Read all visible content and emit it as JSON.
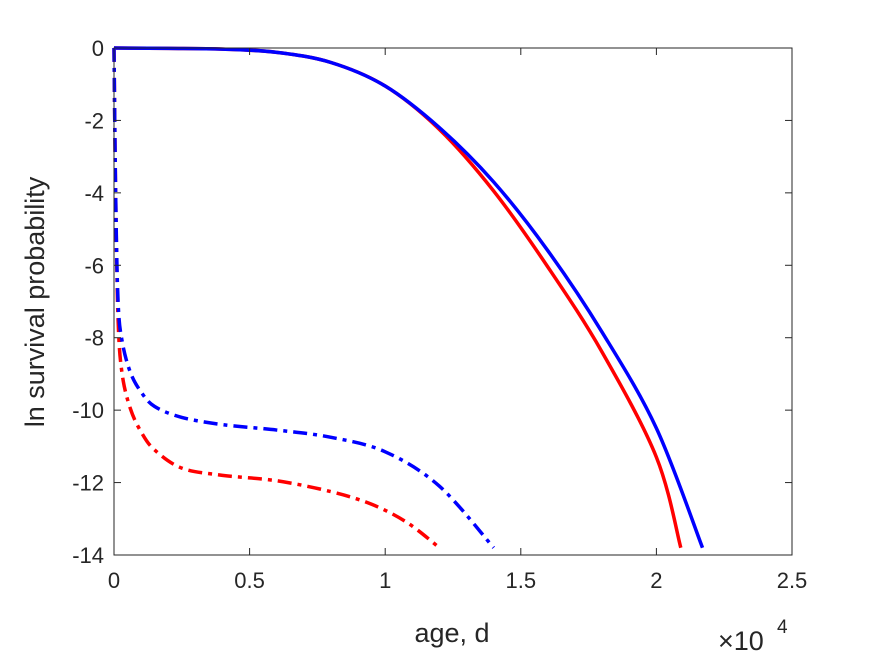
{
  "chart_data": {
    "type": "line",
    "title": "",
    "xlabel": "age, d",
    "ylabel": "ln survival probability",
    "x_exponent_label": {
      "base": "×10",
      "exp": "4"
    },
    "xlim": [
      0,
      25000
    ],
    "ylim": [
      -14,
      0
    ],
    "x_ticks": [
      {
        "value": 0,
        "label": "0"
      },
      {
        "value": 5000,
        "label": "0.5"
      },
      {
        "value": 10000,
        "label": "1"
      },
      {
        "value": 15000,
        "label": "1.5"
      },
      {
        "value": 20000,
        "label": "2"
      },
      {
        "value": 25000,
        "label": "2.5"
      }
    ],
    "y_ticks": [
      {
        "value": 0,
        "label": "0"
      },
      {
        "value": -2,
        "label": "-2"
      },
      {
        "value": -4,
        "label": "-4"
      },
      {
        "value": -6,
        "label": "-6"
      },
      {
        "value": -8,
        "label": "-8"
      },
      {
        "value": -10,
        "label": "-10"
      },
      {
        "value": -12,
        "label": "-12"
      },
      {
        "value": -14,
        "label": "-14"
      }
    ],
    "grid": false,
    "series": [
      {
        "color": "#ff0000",
        "style": "solid",
        "points": [
          [
            0,
            0
          ],
          [
            2000,
            -0.01
          ],
          [
            4000,
            -0.03
          ],
          [
            6000,
            -0.12
          ],
          [
            8000,
            -0.4
          ],
          [
            10000,
            -1.05
          ],
          [
            12000,
            -2.25
          ],
          [
            14000,
            -3.95
          ],
          [
            16000,
            -6.05
          ],
          [
            18000,
            -8.4
          ],
          [
            20000,
            -11.3
          ],
          [
            20900,
            -13.8
          ]
        ]
      },
      {
        "color": "#0000ff",
        "style": "solid",
        "points": [
          [
            0,
            0
          ],
          [
            2000,
            -0.01
          ],
          [
            4000,
            -0.03
          ],
          [
            6000,
            -0.12
          ],
          [
            8000,
            -0.4
          ],
          [
            10000,
            -1.05
          ],
          [
            12000,
            -2.2
          ],
          [
            14000,
            -3.7
          ],
          [
            16000,
            -5.6
          ],
          [
            18000,
            -7.85
          ],
          [
            20000,
            -10.5
          ],
          [
            21700,
            -13.8
          ]
        ]
      },
      {
        "color": "#ff0000",
        "style": "dashdot",
        "points": [
          [
            0,
            0
          ],
          [
            60,
            -4
          ],
          [
            150,
            -7.5
          ],
          [
            300,
            -9.0
          ],
          [
            600,
            -9.95
          ],
          [
            1000,
            -10.6
          ],
          [
            1500,
            -11.1
          ],
          [
            2500,
            -11.6
          ],
          [
            4000,
            -11.8
          ],
          [
            6000,
            -11.95
          ],
          [
            8000,
            -12.25
          ],
          [
            9500,
            -12.6
          ],
          [
            10800,
            -13.1
          ],
          [
            12000,
            -13.8
          ]
        ]
      },
      {
        "color": "#0000ff",
        "style": "dashdot",
        "points": [
          [
            0,
            0
          ],
          [
            60,
            -4
          ],
          [
            150,
            -7.0
          ],
          [
            300,
            -8.1
          ],
          [
            600,
            -8.95
          ],
          [
            1000,
            -9.5
          ],
          [
            1500,
            -9.9
          ],
          [
            2500,
            -10.2
          ],
          [
            4000,
            -10.4
          ],
          [
            6000,
            -10.55
          ],
          [
            8000,
            -10.75
          ],
          [
            10000,
            -11.15
          ],
          [
            12000,
            -12.1
          ],
          [
            14000,
            -13.8
          ]
        ]
      }
    ]
  }
}
